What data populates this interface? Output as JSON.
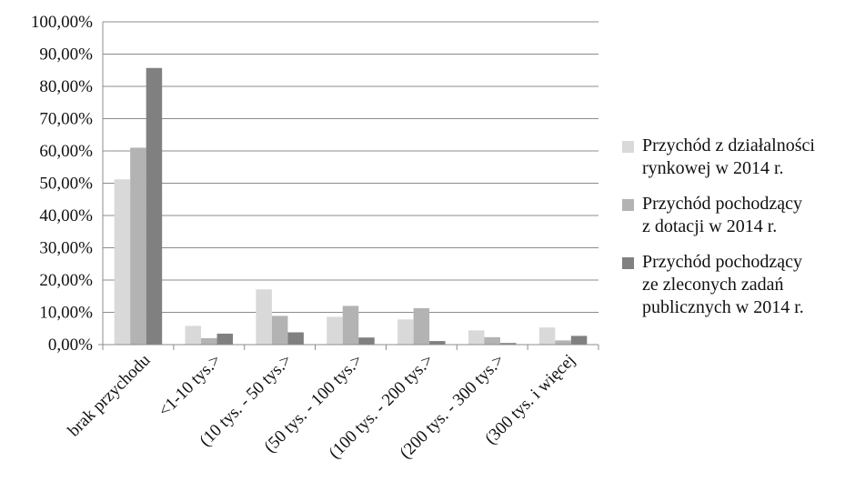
{
  "chart_data": {
    "type": "bar",
    "title": "",
    "xlabel": "",
    "ylabel": "",
    "ylim": [
      0,
      100
    ],
    "y_ticks": [
      "0,00%",
      "10,00%",
      "20,00%",
      "30,00%",
      "40,00%",
      "50,00%",
      "60,00%",
      "70,00%",
      "80,00%",
      "90,00%",
      "100,00%"
    ],
    "grid": true,
    "legend_position": "right",
    "categories": [
      "brak przychodu",
      "<1-10 tys.>",
      "(10 tys. - 50 tys.>",
      "(50 tys. - 100 tys.>",
      "(100 tys. - 200 tys.>",
      "(200 tys. - 300 tys.>",
      "(300 tys. i więcej"
    ],
    "series": [
      {
        "name": "Przychód z działalności rynkowej w 2014 r.",
        "color": "#d9d9d9",
        "values": [
          51.2,
          5.8,
          17.1,
          8.6,
          7.8,
          4.4,
          5.3
        ]
      },
      {
        "name": "Przychód pochodzący z dotacji w 2014 r.",
        "color": "#b3b3b3",
        "values": [
          61.0,
          2.0,
          8.9,
          12.0,
          11.3,
          2.3,
          1.3
        ]
      },
      {
        "name": "Przychód pochodzący ze zleconych zadań publicznych w 2014 r.",
        "color": "#808080",
        "values": [
          85.7,
          3.4,
          3.8,
          2.2,
          1.1,
          0.5,
          2.7
        ]
      }
    ]
  },
  "legend": {
    "items": [
      {
        "lines": [
          "Przychód z działalności",
          "rynkowej w 2014 r."
        ],
        "color": "#d9d9d9"
      },
      {
        "lines": [
          "Przychód pochodzący",
          "z dotacji w 2014 r."
        ],
        "color": "#b3b3b3"
      },
      {
        "lines": [
          "Przychód pochodzący",
          "ze zleconych zadań",
          "publicznych w 2014 r."
        ],
        "color": "#808080"
      }
    ]
  }
}
